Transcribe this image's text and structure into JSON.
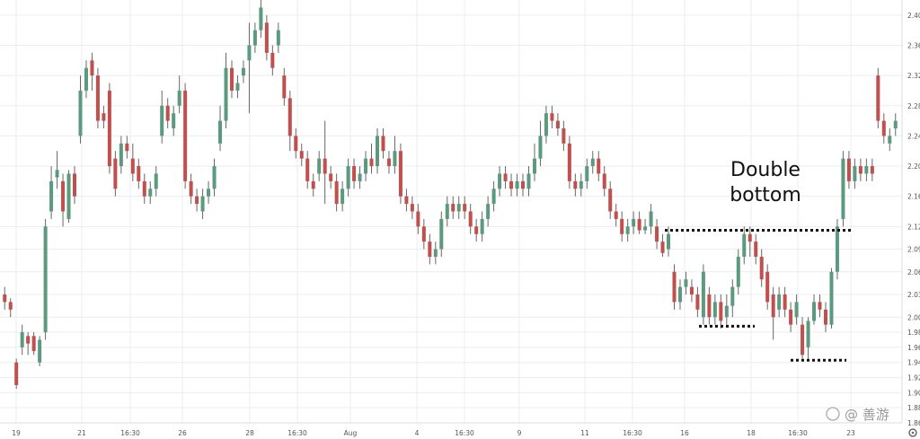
{
  "chart_data": {
    "type": "candlestick",
    "ylim": [
      1.86,
      2.42
    ],
    "y_ticks": [
      "2.40",
      "2.36",
      "2.32",
      "2.28",
      "2.24",
      "2.20",
      "2.16",
      "2.12",
      "2.09",
      "2.06",
      "2.03",
      "2.00",
      "1.98",
      "1.96",
      "1.94",
      "1.92",
      "1.90",
      "1.88",
      "1.86"
    ],
    "x_ticks": [
      "19",
      "21",
      "16:30",
      "26",
      "28",
      "16:30",
      "Aug",
      "4",
      "16:30",
      "9",
      "11",
      "16:30",
      "16",
      "18",
      "16:30",
      "23"
    ],
    "grid": true,
    "colors": {
      "up": "#5b9a7e",
      "down": "#c0504d",
      "wick": "#666666",
      "grid": "#e9edf2",
      "level": "#111111"
    },
    "annotation": {
      "line1": "Double",
      "line2": "bottom"
    },
    "levels": [
      {
        "name": "neckline",
        "price": 2.115
      },
      {
        "name": "first-bottom",
        "price": 1.988
      },
      {
        "name": "second-bottom",
        "price": 1.943
      }
    ],
    "candles": [
      [
        2.03,
        2.02,
        2.04,
        2.01
      ],
      [
        2.02,
        2.01,
        2.025,
        2.0
      ],
      [
        1.94,
        1.91,
        1.945,
        1.905
      ],
      [
        1.96,
        1.98,
        1.99,
        1.95
      ],
      [
        1.975,
        1.965,
        1.98,
        1.95
      ],
      [
        1.975,
        1.955,
        1.98,
        1.95
      ],
      [
        1.94,
        1.97,
        1.975,
        1.935
      ],
      [
        1.98,
        2.12,
        2.13,
        1.97
      ],
      [
        2.14,
        2.18,
        2.2,
        2.13
      ],
      [
        2.185,
        2.195,
        2.22,
        2.17
      ],
      [
        2.18,
        2.14,
        2.19,
        2.12
      ],
      [
        2.13,
        2.19,
        2.195,
        2.125
      ],
      [
        2.19,
        2.16,
        2.2,
        2.15
      ],
      [
        2.24,
        2.3,
        2.32,
        2.23
      ],
      [
        2.3,
        2.33,
        2.34,
        2.29
      ],
      [
        2.34,
        2.32,
        2.35,
        2.3
      ],
      [
        2.32,
        2.26,
        2.33,
        2.25
      ],
      [
        2.27,
        2.26,
        2.28,
        2.25
      ],
      [
        2.3,
        2.2,
        2.31,
        2.19
      ],
      [
        2.21,
        2.17,
        2.22,
        2.16
      ],
      [
        2.2,
        2.23,
        2.24,
        2.19
      ],
      [
        2.23,
        2.22,
        2.24,
        2.21
      ],
      [
        2.21,
        2.19,
        2.23,
        2.18
      ],
      [
        2.2,
        2.18,
        2.21,
        2.17
      ],
      [
        2.18,
        2.16,
        2.19,
        2.15
      ],
      [
        2.16,
        2.17,
        2.18,
        2.15
      ],
      [
        2.17,
        2.19,
        2.2,
        2.16
      ],
      [
        2.24,
        2.28,
        2.3,
        2.23
      ],
      [
        2.28,
        2.26,
        2.29,
        2.25
      ],
      [
        2.25,
        2.27,
        2.28,
        2.24
      ],
      [
        2.28,
        2.3,
        2.32,
        2.27
      ],
      [
        2.3,
        2.18,
        2.31,
        2.17
      ],
      [
        2.18,
        2.16,
        2.19,
        2.15
      ],
      [
        2.16,
        2.15,
        2.17,
        2.14
      ],
      [
        2.14,
        2.16,
        2.17,
        2.13
      ],
      [
        2.16,
        2.17,
        2.18,
        2.15
      ],
      [
        2.17,
        2.2,
        2.21,
        2.16
      ],
      [
        2.23,
        2.26,
        2.28,
        2.22
      ],
      [
        2.26,
        2.33,
        2.35,
        2.25
      ],
      [
        2.33,
        2.3,
        2.34,
        2.29
      ],
      [
        2.3,
        2.31,
        2.32,
        2.29
      ],
      [
        2.32,
        2.33,
        2.34,
        2.31
      ],
      [
        2.34,
        2.36,
        2.39,
        2.27
      ],
      [
        2.36,
        2.38,
        2.39,
        2.35
      ],
      [
        2.38,
        2.41,
        2.42,
        2.37
      ],
      [
        2.39,
        2.35,
        2.4,
        2.34
      ],
      [
        2.35,
        2.33,
        2.36,
        2.32
      ],
      [
        2.36,
        2.38,
        2.39,
        2.35
      ],
      [
        2.32,
        2.29,
        2.33,
        2.28
      ],
      [
        2.29,
        2.24,
        2.3,
        2.22
      ],
      [
        2.24,
        2.22,
        2.25,
        2.21
      ],
      [
        2.22,
        2.21,
        2.23,
        2.2
      ],
      [
        2.21,
        2.18,
        2.22,
        2.17
      ],
      [
        2.18,
        2.17,
        2.19,
        2.16
      ],
      [
        2.19,
        2.21,
        2.22,
        2.18
      ],
      [
        2.21,
        2.19,
        2.26,
        2.15
      ],
      [
        2.19,
        2.18,
        2.2,
        2.17
      ],
      [
        2.18,
        2.15,
        2.19,
        2.14
      ],
      [
        2.15,
        2.17,
        2.18,
        2.14
      ],
      [
        2.17,
        2.2,
        2.21,
        2.16
      ],
      [
        2.2,
        2.18,
        2.21,
        2.17
      ],
      [
        2.18,
        2.19,
        2.2,
        2.17
      ],
      [
        2.19,
        2.21,
        2.22,
        2.18
      ],
      [
        2.21,
        2.2,
        2.23,
        2.19
      ],
      [
        2.2,
        2.24,
        2.25,
        2.19
      ],
      [
        2.24,
        2.22,
        2.25,
        2.21
      ],
      [
        2.21,
        2.2,
        2.22,
        2.19
      ],
      [
        2.2,
        2.22,
        2.24,
        2.19
      ],
      [
        2.22,
        2.16,
        2.23,
        2.15
      ],
      [
        2.16,
        2.15,
        2.17,
        2.14
      ],
      [
        2.15,
        2.14,
        2.16,
        2.13
      ],
      [
        2.14,
        2.12,
        2.15,
        2.11
      ],
      [
        2.12,
        2.1,
        2.13,
        2.09
      ],
      [
        2.1,
        2.08,
        2.11,
        2.07
      ],
      [
        2.08,
        2.09,
        2.1,
        2.07
      ],
      [
        2.09,
        2.13,
        2.14,
        2.08
      ],
      [
        2.13,
        2.15,
        2.16,
        2.12
      ],
      [
        2.15,
        2.14,
        2.16,
        2.13
      ],
      [
        2.14,
        2.15,
        2.16,
        2.13
      ],
      [
        2.15,
        2.14,
        2.16,
        2.13
      ],
      [
        2.14,
        2.12,
        2.15,
        2.11
      ],
      [
        2.12,
        2.11,
        2.13,
        2.1
      ],
      [
        2.11,
        2.13,
        2.14,
        2.1
      ],
      [
        2.13,
        2.15,
        2.16,
        2.12
      ],
      [
        2.15,
        2.17,
        2.18,
        2.14
      ],
      [
        2.17,
        2.19,
        2.2,
        2.16
      ],
      [
        2.19,
        2.18,
        2.2,
        2.17
      ],
      [
        2.18,
        2.17,
        2.19,
        2.16
      ],
      [
        2.17,
        2.18,
        2.19,
        2.16
      ],
      [
        2.18,
        2.17,
        2.19,
        2.16
      ],
      [
        2.17,
        2.19,
        2.2,
        2.16
      ],
      [
        2.19,
        2.21,
        2.23,
        2.18
      ],
      [
        2.21,
        2.24,
        2.26,
        2.2
      ],
      [
        2.24,
        2.27,
        2.28,
        2.23
      ],
      [
        2.27,
        2.26,
        2.28,
        2.25
      ],
      [
        2.26,
        2.25,
        2.27,
        2.24
      ],
      [
        2.25,
        2.23,
        2.26,
        2.22
      ],
      [
        2.23,
        2.18,
        2.24,
        2.17
      ],
      [
        2.18,
        2.17,
        2.19,
        2.16
      ],
      [
        2.17,
        2.18,
        2.19,
        2.16
      ],
      [
        2.18,
        2.2,
        2.21,
        2.17
      ],
      [
        2.2,
        2.21,
        2.22,
        2.19
      ],
      [
        2.21,
        2.19,
        2.22,
        2.18
      ],
      [
        2.19,
        2.17,
        2.2,
        2.16
      ],
      [
        2.17,
        2.14,
        2.18,
        2.13
      ],
      [
        2.14,
        2.13,
        2.15,
        2.12
      ],
      [
        2.13,
        2.11,
        2.14,
        2.1
      ],
      [
        2.11,
        2.12,
        2.13,
        2.1
      ],
      [
        2.12,
        2.13,
        2.14,
        2.11
      ],
      [
        2.13,
        2.115,
        2.14,
        2.11
      ],
      [
        2.115,
        2.12,
        2.13,
        2.11
      ],
      [
        2.12,
        2.14,
        2.15,
        2.11
      ],
      [
        2.12,
        2.1,
        2.13,
        2.09
      ],
      [
        2.1,
        2.085,
        2.11,
        2.08
      ],
      [
        2.09,
        2.11,
        2.12,
        2.08
      ],
      [
        2.06,
        2.02,
        2.07,
        2.01
      ],
      [
        2.02,
        2.04,
        2.05,
        2.01
      ],
      [
        2.04,
        2.05,
        2.06,
        2.03
      ],
      [
        2.04,
        2.03,
        2.05,
        2.02
      ],
      [
        2.03,
        2.01,
        2.04,
        2.0
      ],
      [
        2.0,
        2.06,
        2.07,
        1.99
      ],
      [
        2.03,
        2.0,
        2.04,
        1.99
      ],
      [
        2.0,
        2.02,
        2.03,
        1.99
      ],
      [
        2.02,
        1.995,
        2.03,
        1.985
      ],
      [
        2.0,
        2.015,
        2.03,
        1.99
      ],
      [
        2.015,
        2.04,
        2.05,
        2.0
      ],
      [
        2.04,
        2.08,
        2.09,
        2.03
      ],
      [
        2.08,
        2.11,
        2.12,
        2.07
      ],
      [
        2.11,
        2.1,
        2.12,
        2.08
      ],
      [
        2.1,
        2.08,
        2.11,
        2.07
      ],
      [
        2.08,
        2.05,
        2.09,
        2.04
      ],
      [
        2.06,
        2.02,
        2.07,
        2.01
      ],
      [
        2.03,
        2.0,
        2.04,
        1.97
      ],
      [
        2.01,
        2.03,
        2.04,
        2.0
      ],
      [
        2.03,
        2.01,
        2.04,
        2.0
      ],
      [
        2.01,
        1.99,
        2.02,
        1.98
      ],
      [
        2.0,
        2.02,
        2.03,
        1.99
      ],
      [
        1.99,
        1.95,
        2.0,
        1.945
      ],
      [
        1.96,
        1.995,
        2.0,
        1.945
      ],
      [
        1.995,
        2.02,
        2.03,
        1.99
      ],
      [
        2.02,
        2.01,
        2.03,
        2.0
      ],
      [
        2.01,
        1.99,
        2.02,
        1.98
      ],
      [
        1.99,
        2.06,
        2.065,
        1.985
      ],
      [
        2.06,
        2.12,
        2.13,
        2.05
      ],
      [
        2.13,
        2.21,
        2.22,
        2.12
      ],
      [
        2.21,
        2.18,
        2.22,
        2.17
      ],
      [
        2.18,
        2.2,
        2.21,
        2.17
      ],
      [
        2.2,
        2.19,
        2.21,
        2.18
      ],
      [
        2.19,
        2.2,
        2.21,
        2.18
      ],
      [
        2.2,
        2.19,
        2.21,
        2.18
      ],
      [
        2.32,
        2.26,
        2.33,
        2.25
      ],
      [
        2.26,
        2.24,
        2.27,
        2.23
      ],
      [
        2.23,
        2.24,
        2.25,
        2.22
      ],
      [
        2.25,
        2.26,
        2.27,
        2.24
      ]
    ]
  },
  "watermark": {
    "text": "@ 善游"
  }
}
